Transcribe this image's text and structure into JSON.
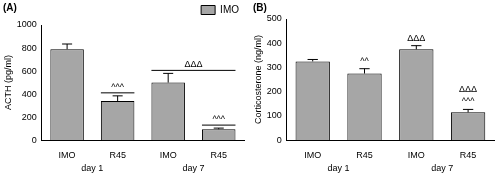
{
  "chart_data": [
    {
      "type": "bar",
      "title": "(A)",
      "y_label": "ACTH (pg/ml)",
      "categories": [
        "IMO",
        "R45",
        "IMO",
        "R45"
      ],
      "groups": [
        "day 1",
        "day 7"
      ],
      "series": [
        {
          "name": "IMO",
          "color": "#a6a6a6",
          "values": [
            790,
            340,
            500,
            95
          ],
          "errors": [
            45,
            45,
            80,
            10
          ]
        }
      ],
      "ylim": [
        0,
        1000
      ],
      "yticks": [
        0,
        200,
        400,
        600,
        800,
        1000
      ],
      "grid": false,
      "legend": "top-right",
      "annotations": [
        {
          "text": "^^^",
          "from": 1,
          "to": 1,
          "line": true
        },
        {
          "text": "^^^",
          "from": 3,
          "to": 3,
          "line": true
        },
        {
          "text": "ΔΔΔ",
          "from": 2,
          "to": 3,
          "line": true
        }
      ]
    },
    {
      "type": "bar",
      "title": "(B)",
      "y_label": "Corticosterone (ng/ml)",
      "categories": [
        "IMO",
        "R45",
        "IMO",
        "R45"
      ],
      "groups": [
        "day 1",
        "day 7"
      ],
      "values": [
        325,
        275,
        375,
        115
      ],
      "errors": [
        8,
        20,
        15,
        12
      ],
      "color": "#a6a6a6",
      "ylim": [
        0,
        500
      ],
      "yticks": [
        0,
        100,
        200,
        300,
        400,
        500
      ],
      "grid": false,
      "annotations": [
        {
          "text": "^^",
          "from": 1,
          "to": 1,
          "line": false
        },
        {
          "text": "ΔΔΔ",
          "from": 2,
          "to": 2,
          "line": false
        },
        {
          "text": "^^^",
          "from": 3,
          "to": 3,
          "line": false
        },
        {
          "text": "ΔΔΔ",
          "from": 3,
          "to": 3,
          "line": false
        }
      ]
    }
  ]
}
